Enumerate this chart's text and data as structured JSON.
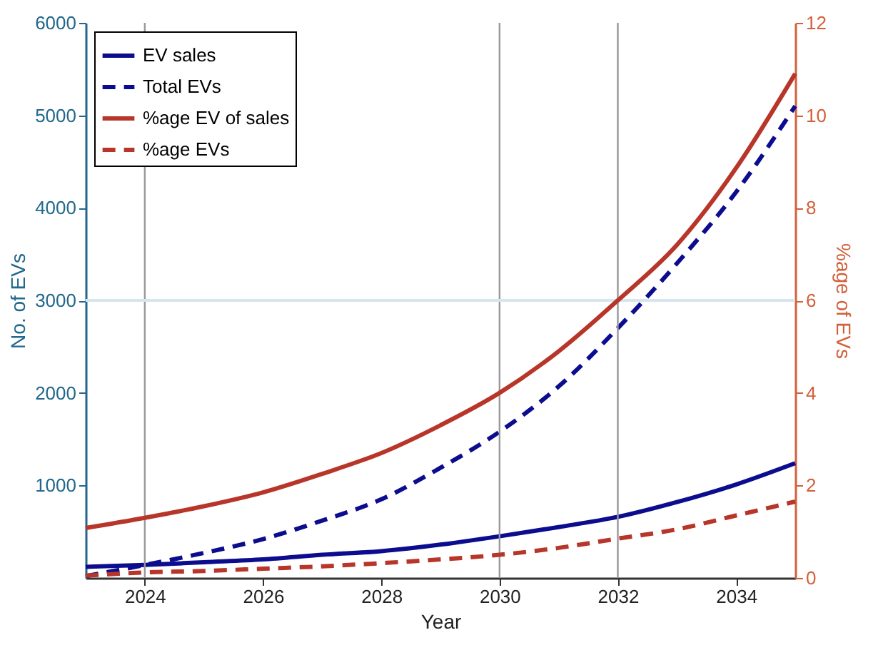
{
  "chart_data": {
    "type": "line",
    "xlabel": "Year",
    "ylabel": "No. of EVs",
    "y2label": "%age of EVs",
    "x": [
      2023,
      2024,
      2025,
      2026,
      2027,
      2028,
      2029,
      2030,
      2031,
      2032,
      2033,
      2034,
      2035
    ],
    "series": [
      {
        "name": "EV sales",
        "color": "#0c0c8f",
        "line_style": "solid",
        "values": [
          120,
          140,
          170,
          200,
          250,
          290,
          360,
          450,
          550,
          660,
          820,
          1010,
          1240
        ]
      },
      {
        "name": "Total EVs",
        "color": "#0c0c8f",
        "line_style": "dashed",
        "values": [
          20,
          140,
          270,
          420,
          620,
          850,
          1190,
          1580,
          2070,
          2700,
          3400,
          4170,
          5100
        ]
      },
      {
        "name": "%age EV of sales",
        "color": "#b8352a",
        "line_style": "solid",
        "axis": "y2",
        "values": [
          1.08,
          1.3,
          1.55,
          1.85,
          2.25,
          2.7,
          3.3,
          4.0,
          4.9,
          6.0,
          7.2,
          8.86,
          10.9
        ]
      },
      {
        "name": "%age EVs",
        "color": "#b8352a",
        "line_style": "dashed",
        "axis": "y2",
        "values": [
          0.05,
          0.12,
          0.15,
          0.2,
          0.25,
          0.32,
          0.4,
          0.5,
          0.65,
          0.85,
          1.05,
          1.35,
          1.65
        ]
      }
    ],
    "xlim": [
      2023,
      2035
    ],
    "xticks": [
      2024,
      2026,
      2028,
      2030,
      2032,
      2034
    ],
    "ylim": [
      0,
      6000
    ],
    "yticks": [
      1000,
      2000,
      3000,
      4000,
      5000,
      6000
    ],
    "y2lim": [
      0,
      12
    ],
    "y2ticks": [
      0,
      2,
      4,
      6,
      8,
      10,
      12
    ],
    "ref_lines": [
      {
        "axis": "x",
        "value": 2024,
        "color": "#999999"
      },
      {
        "axis": "x",
        "value": 2030,
        "color": "#999999"
      },
      {
        "axis": "x",
        "value": 2032,
        "color": "#999999"
      },
      {
        "axis": "y",
        "value": 3000,
        "color": "#d5e6f0"
      }
    ],
    "legend": "top left",
    "grid": false,
    "marker": "none"
  }
}
